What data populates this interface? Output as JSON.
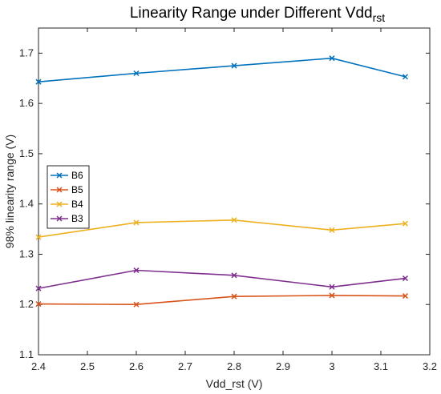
{
  "chart_data": {
    "type": "line",
    "title": "Linearity Range under Different Vdd",
    "title_subscript": "rst",
    "xlabel": "Vdd_rst (V)",
    "ylabel": "98% linearity range (V)",
    "xlim": [
      2.4,
      3.2
    ],
    "ylim": [
      1.1,
      1.75
    ],
    "x_ticks": [
      "2.4",
      "2.5",
      "2.6",
      "2.7",
      "2.8",
      "2.9",
      "3",
      "3.1",
      "3.2"
    ],
    "y_ticks": [
      "1.1",
      "1.2",
      "1.3",
      "1.4",
      "1.5",
      "1.6",
      "1.7"
    ],
    "grid": false,
    "legend_position": "middle-left",
    "x": [
      2.4,
      2.6,
      2.8,
      3.0,
      3.15
    ],
    "series": [
      {
        "name": "B6",
        "color": "#0072BD",
        "values": [
          1.643,
          1.66,
          1.675,
          1.69,
          1.653
        ]
      },
      {
        "name": "B5",
        "color": "#D95319",
        "values": [
          1.201,
          1.2,
          1.216,
          1.218,
          1.217
        ]
      },
      {
        "name": "B4",
        "color": "#EDB120",
        "values": [
          1.334,
          1.363,
          1.368,
          1.348,
          1.361
        ]
      },
      {
        "name": "B3",
        "color": "#7E2F8E",
        "values": [
          1.232,
          1.268,
          1.258,
          1.235,
          1.252
        ]
      }
    ]
  }
}
